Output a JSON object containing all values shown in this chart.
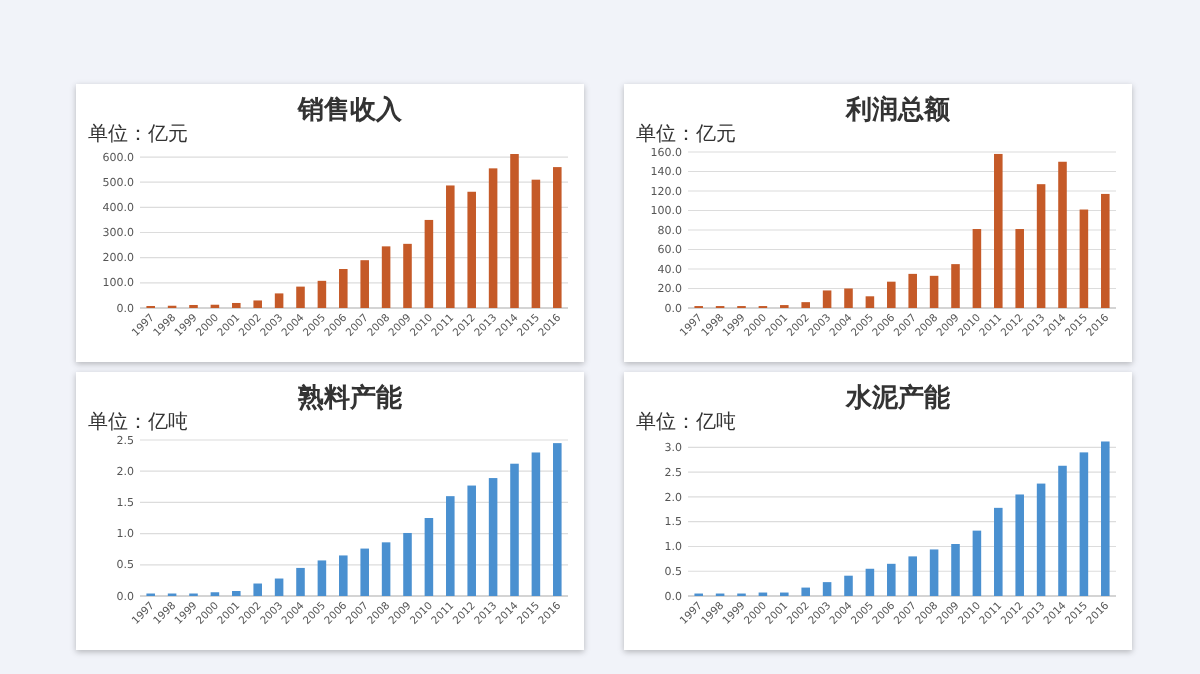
{
  "chart_data": [
    {
      "type": "bar",
      "title": "销售收入",
      "subtitle": "单位：亿元",
      "categories": [
        "1997",
        "1998",
        "1999",
        "2000",
        "2001",
        "2002",
        "2003",
        "2004",
        "2005",
        "2006",
        "2007",
        "2008",
        "2009",
        "2010",
        "2011",
        "2012",
        "2013",
        "2014",
        "2015",
        "2016"
      ],
      "values": [
        8,
        9,
        12,
        13,
        20,
        30,
        58,
        85,
        108,
        155,
        190,
        245,
        255,
        350,
        487,
        462,
        555,
        612,
        510,
        560
      ],
      "color": "#c55a28",
      "ylim": [
        0,
        620
      ],
      "yticks": [
        {
          "value": 0,
          "label": "0.0"
        },
        {
          "value": 100,
          "label": "100.0"
        },
        {
          "value": 200,
          "label": "200.0"
        },
        {
          "value": 300,
          "label": "300.0"
        },
        {
          "value": 400,
          "label": "400.0"
        },
        {
          "value": 500,
          "label": "500.0"
        },
        {
          "value": 600,
          "label": "600.0"
        }
      ],
      "grid": "y"
    },
    {
      "type": "bar",
      "title": "利润总额",
      "subtitle": "单位：亿元",
      "categories": [
        "1997",
        "1998",
        "1999",
        "2000",
        "2001",
        "2002",
        "2003",
        "2004",
        "2005",
        "2006",
        "2007",
        "2008",
        "2009",
        "2010",
        "2011",
        "2012",
        "2013",
        "2014",
        "2015",
        "2016"
      ],
      "values": [
        2,
        2,
        2,
        2,
        3,
        6,
        18,
        20,
        12,
        27,
        35,
        33,
        45,
        81,
        158,
        81,
        127,
        150,
        101,
        117
      ],
      "color": "#c55a28",
      "ylim": [
        0,
        160
      ],
      "yticks": [
        {
          "value": 0,
          "label": "0.0"
        },
        {
          "value": 20,
          "label": "20.0"
        },
        {
          "value": 40,
          "label": "40.0"
        },
        {
          "value": 60,
          "label": "60.0"
        },
        {
          "value": 80,
          "label": "80.0"
        },
        {
          "value": 100,
          "label": "100.0"
        },
        {
          "value": 120,
          "label": "120.0"
        },
        {
          "value": 140,
          "label": "140.0"
        },
        {
          "value": 160,
          "label": "160.0"
        }
      ],
      "grid": "y"
    },
    {
      "type": "bar",
      "title": "熟料产能",
      "subtitle": "单位：亿吨",
      "categories": [
        "1997",
        "1998",
        "1999",
        "2000",
        "2001",
        "2002",
        "2003",
        "2004",
        "2005",
        "2006",
        "2007",
        "2008",
        "2009",
        "2010",
        "2011",
        "2012",
        "2013",
        "2014",
        "2015",
        "2016"
      ],
      "values": [
        0.04,
        0.04,
        0.04,
        0.06,
        0.08,
        0.2,
        0.28,
        0.45,
        0.57,
        0.65,
        0.76,
        0.86,
        1.01,
        1.25,
        1.6,
        1.77,
        1.89,
        2.12,
        2.3,
        2.45
      ],
      "color": "#4a90d0",
      "ylim": [
        0,
        2.5
      ],
      "yticks": [
        {
          "value": 0,
          "label": "0.0"
        },
        {
          "value": 0.5,
          "label": "0.5"
        },
        {
          "value": 1,
          "label": "1.0"
        },
        {
          "value": 1.5,
          "label": "1.5"
        },
        {
          "value": 2,
          "label": "2.0"
        },
        {
          "value": 2.5,
          "label": "2.5"
        }
      ],
      "grid": "y"
    },
    {
      "type": "bar",
      "title": "水泥产能",
      "subtitle": "单位：亿吨",
      "categories": [
        "1997",
        "1998",
        "1999",
        "2000",
        "2001",
        "2002",
        "2003",
        "2004",
        "2005",
        "2006",
        "2007",
        "2008",
        "2009",
        "2010",
        "2011",
        "2012",
        "2013",
        "2014",
        "2015",
        "2016"
      ],
      "values": [
        0.05,
        0.05,
        0.05,
        0.07,
        0.07,
        0.17,
        0.28,
        0.41,
        0.55,
        0.65,
        0.8,
        0.94,
        1.05,
        1.32,
        1.78,
        2.05,
        2.27,
        2.63,
        2.9,
        3.12
      ],
      "color": "#4a90d0",
      "ylim": [
        0,
        3.15
      ],
      "yticks": [
        {
          "value": 0,
          "label": "0.0"
        },
        {
          "value": 0.5,
          "label": "0.5"
        },
        {
          "value": 1,
          "label": "1.0"
        },
        {
          "value": 1.5,
          "label": "1.5"
        },
        {
          "value": 2,
          "label": "2.0"
        },
        {
          "value": 2.5,
          "label": "2.5"
        },
        {
          "value": 3,
          "label": "3.0"
        }
      ],
      "grid": "y"
    }
  ]
}
